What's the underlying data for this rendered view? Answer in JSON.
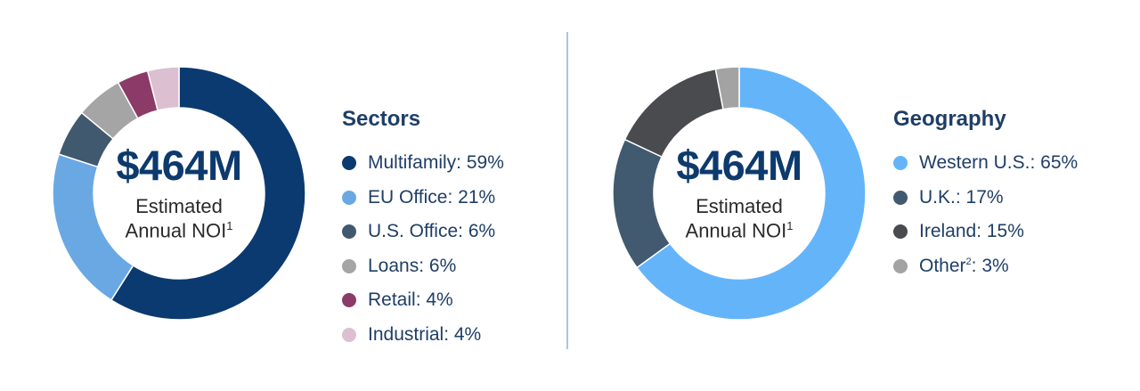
{
  "chart_data": [
    {
      "type": "pie",
      "donut": true,
      "title": "Sectors",
      "center_value": "$464M",
      "center_line1": "Estimated",
      "center_line2": "Annual NOI",
      "center_line2_sup": "1",
      "slices": [
        {
          "label": "Multifamily",
          "value": 59,
          "display": "Multifamily: 59%",
          "sup": "",
          "color": "#0b3a70"
        },
        {
          "label": "EU Office",
          "value": 21,
          "display": "EU Office: 21%",
          "sup": "",
          "color": "#6aa8e4"
        },
        {
          "label": "U.S. Office",
          "value": 6,
          "display": "U.S. Office: 6%",
          "sup": "",
          "color": "#41596f"
        },
        {
          "label": "Loans",
          "value": 6,
          "display": "Loans: 6%",
          "sup": "",
          "color": "#a5a5a5"
        },
        {
          "label": "Retail",
          "value": 4,
          "display": "Retail: 4%",
          "sup": "",
          "color": "#8c3a67"
        },
        {
          "label": "Industrial",
          "value": 4,
          "display": "Industrial: 4%",
          "sup": "",
          "color": "#dcbfd1"
        }
      ]
    },
    {
      "type": "pie",
      "donut": true,
      "title": "Geography",
      "center_value": "$464M",
      "center_line1": "Estimated",
      "center_line2": "Annual NOI",
      "center_line2_sup": "1",
      "slices": [
        {
          "label": "Western U.S.",
          "value": 65,
          "display": "Western U.S.: 65%",
          "sup": "",
          "color": "#64b4fa"
        },
        {
          "label": "U.K.",
          "value": 17,
          "display": "U.K.: 17%",
          "sup": "",
          "color": "#415a70"
        },
        {
          "label": "Ireland",
          "value": 15,
          "display": "Ireland: 15%",
          "sup": "",
          "color": "#4a4b4f"
        },
        {
          "label": "Other",
          "value": 3,
          "display": ": 3%",
          "sup": "2",
          "color": "#a3a3a3"
        }
      ]
    }
  ]
}
